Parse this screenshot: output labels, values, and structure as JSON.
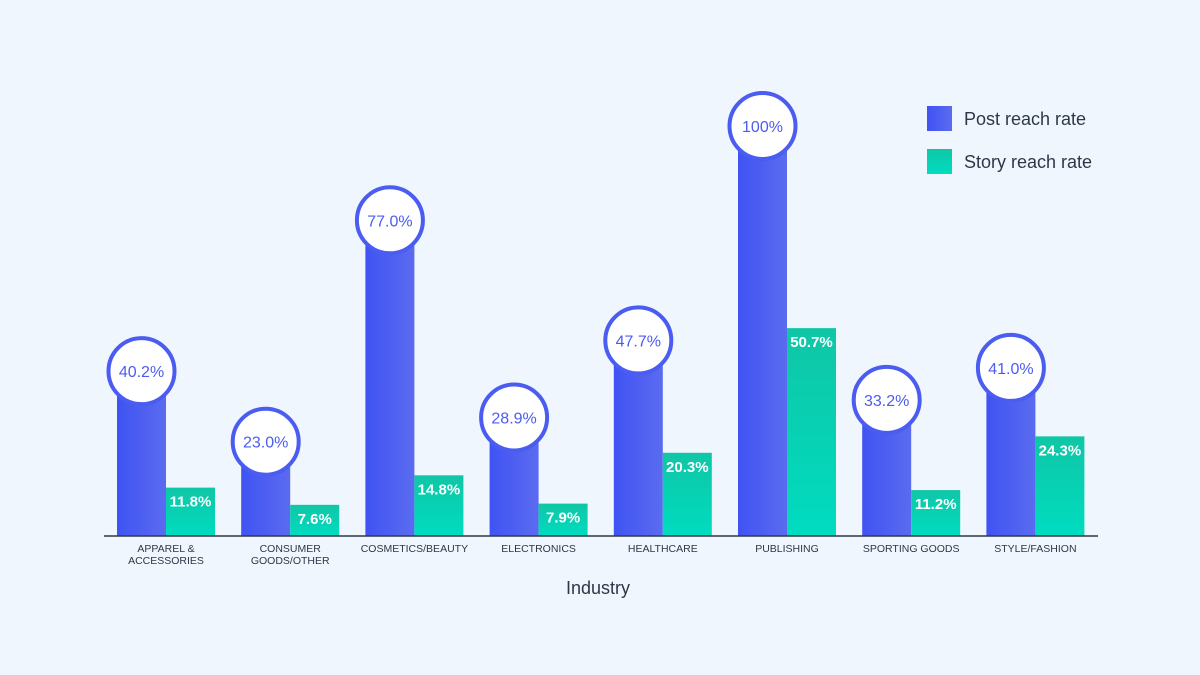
{
  "chart_data": {
    "type": "bar",
    "title": "",
    "xlabel": "Industry",
    "ylabel": "",
    "ylim": [
      0,
      100
    ],
    "grid": false,
    "legend_position": "top-right",
    "categories": [
      [
        "APPAREL &",
        "ACCESSORIES"
      ],
      [
        "CONSUMER",
        "GOODS/OTHER"
      ],
      [
        "COSMETICS/BEAUTY"
      ],
      [
        "ELECTRONICS"
      ],
      [
        "HEALTHCARE"
      ],
      [
        "PUBLISHING"
      ],
      [
        "SPORTING GOODS"
      ],
      [
        "STYLE/FASHION"
      ]
    ],
    "series": [
      {
        "name": "Post reach rate",
        "color": "#4b5cf0",
        "values": [
          40.2,
          23.0,
          77.0,
          28.9,
          47.7,
          100,
          33.2,
          41.0
        ],
        "labels": [
          "40.2%",
          "23.0%",
          "77.0%",
          "28.9%",
          "47.7%",
          "100%",
          "33.2%",
          "41.0%"
        ]
      },
      {
        "name": "Story reach rate",
        "color": "#12d3b2",
        "values": [
          11.8,
          7.6,
          14.8,
          7.9,
          20.3,
          50.7,
          11.2,
          24.3
        ],
        "labels": [
          "11.8%",
          "7.6%",
          "14.8%",
          "7.9%",
          "20.3%",
          "50.7%",
          "11.2%",
          "24.3%"
        ]
      }
    ]
  }
}
